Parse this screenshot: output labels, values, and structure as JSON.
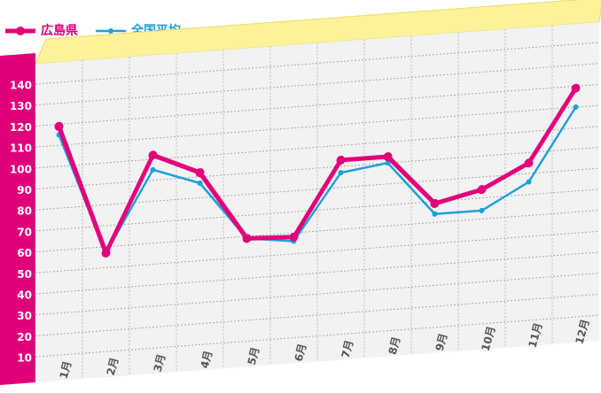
{
  "chart_data": {
    "type": "line",
    "categories": [
      "1月",
      "2月",
      "3月",
      "4月",
      "5月",
      "6月",
      "7月",
      "8月",
      "9月",
      "10月",
      "11月",
      "12月"
    ],
    "series": [
      {
        "name": "広島県",
        "color": "#e0007a",
        "values": [
          119,
          57,
          102,
          92,
          59,
          58,
          93,
          93,
          69,
          74,
          85,
          119
        ]
      },
      {
        "name": "全国平均",
        "color": "#1ea0dc",
        "values": [
          115,
          57,
          95,
          87,
          59,
          56,
          87,
          90,
          64,
          64,
          76,
          110
        ]
      }
    ],
    "ylim": [
      0,
      150
    ],
    "yticks": [
      10,
      20,
      30,
      40,
      50,
      60,
      70,
      80,
      90,
      100,
      110,
      120,
      130,
      140
    ],
    "grid": true
  }
}
